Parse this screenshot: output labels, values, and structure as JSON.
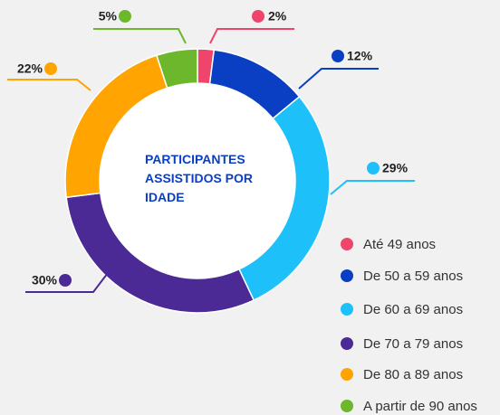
{
  "chart_data": {
    "type": "donut",
    "title": "PARTICIPANTES ASSISTIDOS POR IDADE",
    "categories": [
      "Até 49 anos",
      "De 50 a 59 anos",
      "De 60 a 69 anos",
      "De 70 a 79 anos",
      "De 80 a 89 anos",
      "A partir de 90 anos"
    ],
    "values": [
      2,
      12,
      29,
      30,
      22,
      5
    ],
    "value_labels": [
      "2%",
      "12%",
      "29%",
      "30%",
      "22%",
      "5%"
    ],
    "colors": [
      "#f0456a",
      "#0a3fc4",
      "#1ec0fa",
      "#4c2a96",
      "#ffa400",
      "#6cb72b"
    ],
    "legend": "bottom-right"
  }
}
